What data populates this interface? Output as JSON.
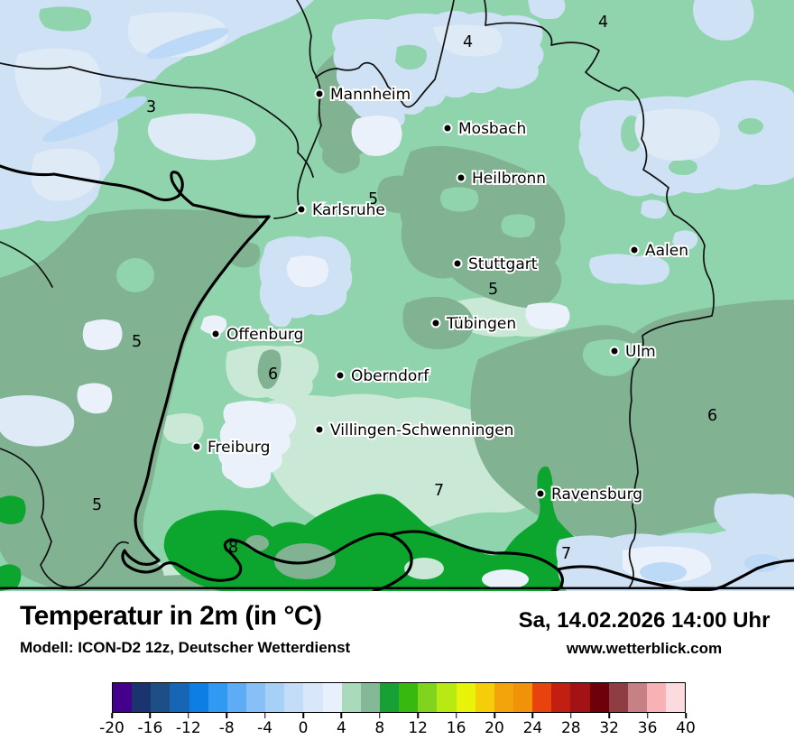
{
  "map": {
    "cities": [
      {
        "name": "Mannheim"
      },
      {
        "name": "Mosbach"
      },
      {
        "name": "Heilbronn"
      },
      {
        "name": "Karlsruhe"
      },
      {
        "name": "Stuttgart"
      },
      {
        "name": "Aalen"
      },
      {
        "name": "Offenburg"
      },
      {
        "name": "Tübingen"
      },
      {
        "name": "Ulm"
      },
      {
        "name": "Oberndorf"
      },
      {
        "name": "Villingen-Schwenningen"
      },
      {
        "name": "Freiburg"
      },
      {
        "name": "Ravensburg"
      }
    ],
    "value_labels": [
      "3",
      "4",
      "4",
      "5",
      "5",
      "5",
      "6",
      "5",
      "6",
      "7",
      "8",
      "7"
    ],
    "colors": {
      "mint": "#8fd4ac",
      "pale_mint": "#c9e8d6",
      "sage": "#81b392",
      "bright_green": "#0ca52e",
      "pale_blue": "#cfe1f4",
      "lighter_blue": "#dfeaf7",
      "white_blue": "#eaf1fa",
      "blue_streak": "#bcd9f7",
      "border": "#000000"
    }
  },
  "footer": {
    "title": "Temperatur in 2m (in °C)",
    "model_line": "Modell: ICON-D2 12z, Deutscher Wetterdienst",
    "datetime": "Sa, 14.02.2026 14:00 Uhr",
    "website": "www.wetterblick.com"
  },
  "colorbar": {
    "unit": "°C",
    "min": -20,
    "max": 40,
    "step": 2,
    "tick_labels": [
      "-20",
      "-16",
      "-12",
      "-8",
      "-4",
      "0",
      "4",
      "8",
      "12",
      "16",
      "20",
      "24",
      "28",
      "32",
      "36",
      "40"
    ],
    "colors": [
      "#42008c",
      "#1a3470",
      "#1d4e86",
      "#1766b5",
      "#0d7ee4",
      "#309af2",
      "#5dacf5",
      "#86c0f7",
      "#a7d0f7",
      "#c3dcf8",
      "#d8e8fa",
      "#e7f0fb",
      "#a9dabc",
      "#85b897",
      "#17a134",
      "#38b90f",
      "#80d41d",
      "#b7e912",
      "#e7f308",
      "#f5cd08",
      "#f2a40b",
      "#f09309",
      "#e8430d",
      "#c31e12",
      "#a31214",
      "#6d0009",
      "#8e3e42",
      "#c68185",
      "#f8b2b5",
      "#fbdbdd"
    ]
  }
}
